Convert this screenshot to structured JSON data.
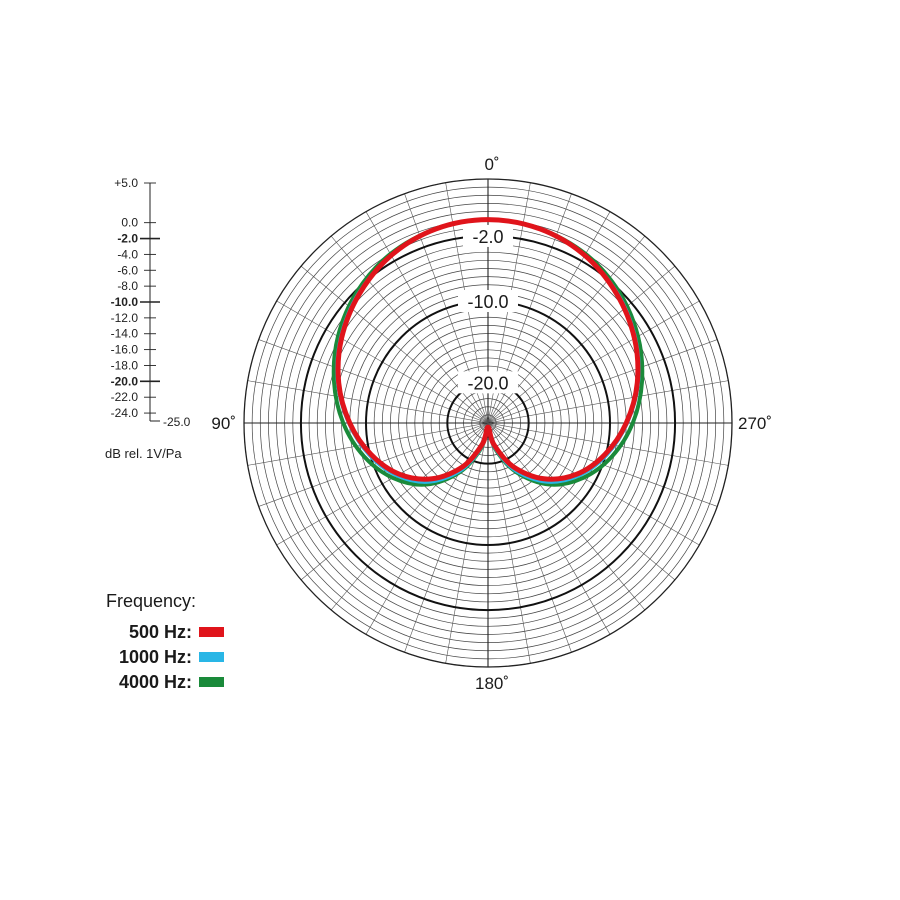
{
  "chart_data": {
    "type": "polar-line",
    "angle_labels": [
      {
        "deg": 0,
        "text": "0˚"
      },
      {
        "deg": 90,
        "text": "90˚"
      },
      {
        "deg": 180,
        "text": "180˚"
      },
      {
        "deg": 270,
        "text": "270˚"
      }
    ],
    "r_range": [
      -25,
      5
    ],
    "db_scale": {
      "ticks": [
        {
          "v": 5,
          "label": "+5.0",
          "bold": false
        },
        {
          "v": 0,
          "label": "0.0",
          "bold": false
        },
        {
          "v": -2,
          "label": "-2.0",
          "bold": true
        },
        {
          "v": -4,
          "label": "-4.0",
          "bold": false
        },
        {
          "v": -6,
          "label": "-6.0",
          "bold": false
        },
        {
          "v": -8,
          "label": "-8.0",
          "bold": false
        },
        {
          "v": -10,
          "label": "-10.0",
          "bold": true
        },
        {
          "v": -12,
          "label": "-12.0",
          "bold": false
        },
        {
          "v": -14,
          "label": "-14.0",
          "bold": false
        },
        {
          "v": -16,
          "label": "-16.0",
          "bold": false
        },
        {
          "v": -18,
          "label": "-18.0",
          "bold": false
        },
        {
          "v": -20,
          "label": "-20.0",
          "bold": true
        },
        {
          "v": -22,
          "label": "-22.0",
          "bold": false
        },
        {
          "v": -24,
          "label": "-24.0",
          "bold": false
        }
      ],
      "bottom_label": "-25.0",
      "unit": "dB rel. 1V/Pa"
    },
    "ring_labels": [
      {
        "v": -2,
        "text": "-2.0"
      },
      {
        "v": -10,
        "text": "-10.0"
      },
      {
        "v": -20,
        "text": "-20.0"
      }
    ],
    "legend": {
      "title": "Frequency:",
      "items": [
        {
          "label": "500 Hz:",
          "color": "#e0141b"
        },
        {
          "label": "1000 Hz:",
          "color": "#29b6e6"
        },
        {
          "label": "4000 Hz:",
          "color": "#1a8a3a"
        }
      ]
    },
    "series": [
      {
        "name": "4000 Hz",
        "color": "#1a8a3a",
        "angles": [
          0,
          15,
          30,
          45,
          60,
          75,
          90,
          105,
          120,
          135,
          150,
          165,
          180
        ],
        "db": [
          0,
          -0.3,
          -1.0,
          -2.2,
          -3.7,
          -5.4,
          -7.2,
          -9.2,
          -11.5,
          -14.3,
          -18.0,
          -21.8,
          -24.5
        ]
      },
      {
        "name": "1000 Hz",
        "color": "#29b6e6",
        "angles": [
          0,
          15,
          30,
          45,
          60,
          75,
          90,
          105,
          120,
          135,
          150,
          165,
          180
        ],
        "db": [
          0,
          -0.3,
          -1.2,
          -2.5,
          -4.1,
          -5.9,
          -7.9,
          -9.9,
          -12.1,
          -14.8,
          -18.3,
          -22.0,
          -24.5
        ]
      },
      {
        "name": "500 Hz",
        "color": "#e0141b",
        "angles": [
          0,
          15,
          30,
          45,
          60,
          75,
          90,
          105,
          120,
          135,
          150,
          165,
          180
        ],
        "db": [
          0,
          -0.3,
          -1.2,
          -2.6,
          -4.2,
          -6.0,
          -8.0,
          -10.1,
          -12.4,
          -15.3,
          -18.8,
          -22.3,
          -24.5
        ]
      }
    ]
  }
}
